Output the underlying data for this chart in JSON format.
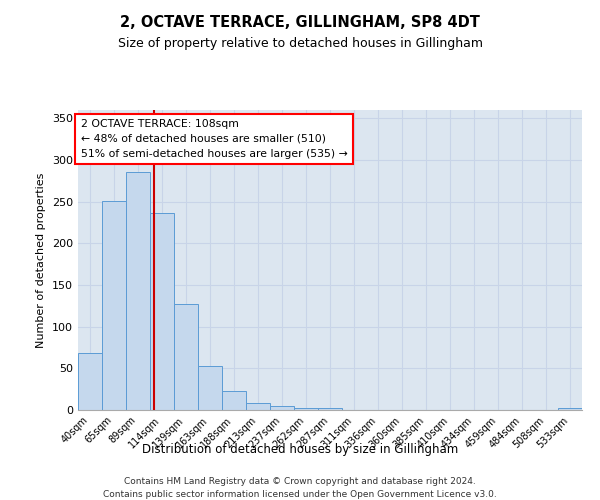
{
  "title": "2, OCTAVE TERRACE, GILLINGHAM, SP8 4DT",
  "subtitle": "Size of property relative to detached houses in Gillingham",
  "xlabel": "Distribution of detached houses by size in Gillingham",
  "ylabel": "Number of detached properties",
  "bar_labels": [
    "40sqm",
    "65sqm",
    "89sqm",
    "114sqm",
    "139sqm",
    "163sqm",
    "188sqm",
    "213sqm",
    "237sqm",
    "262sqm",
    "287sqm",
    "311sqm",
    "336sqm",
    "360sqm",
    "385sqm",
    "410sqm",
    "434sqm",
    "459sqm",
    "484sqm",
    "508sqm",
    "533sqm"
  ],
  "bar_values": [
    68,
    251,
    286,
    237,
    127,
    53,
    23,
    9,
    5,
    3,
    2,
    0,
    0,
    0,
    0,
    0,
    0,
    0,
    0,
    0,
    3
  ],
  "bar_color": "#c5d8ed",
  "bar_edge_color": "#5b9bd5",
  "red_line_x": 2.68,
  "annotation_text": "2 OCTAVE TERRACE: 108sqm\n← 48% of detached houses are smaller (510)\n51% of semi-detached houses are larger (535) →",
  "annotation_box_color": "white",
  "annotation_box_edge_color": "red",
  "red_line_color": "#cc0000",
  "grid_color": "#c8d4e8",
  "background_color": "#dce6f0",
  "ylim": [
    0,
    360
  ],
  "yticks": [
    0,
    50,
    100,
    150,
    200,
    250,
    300,
    350
  ],
  "footer_line1": "Contains HM Land Registry data © Crown copyright and database right 2024.",
  "footer_line2": "Contains public sector information licensed under the Open Government Licence v3.0."
}
